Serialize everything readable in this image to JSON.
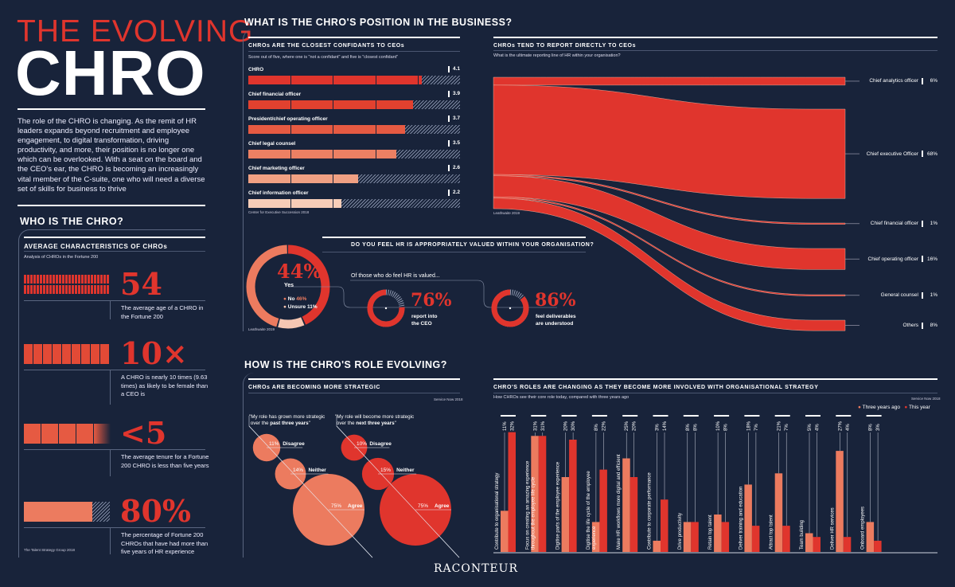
{
  "header": {
    "kicker": "THE EVOLVING",
    "title": "CHRO",
    "intro": "The role of the CHRO is changing. As the remit of HR leaders expands beyond recruitment and employee engagement, to digital transformation, driving productivity, and more, their position is no longer one which can be overlooked. With a seat on the board and the CEO's ear, the CHRO is becoming an increasingly vital member of the C-suite, one who will need a diverse set of skills for business to thrive"
  },
  "who": {
    "heading": "WHO IS THE CHRO?",
    "panel_title": "AVERAGE CHARACTERISTICS OF CHROs",
    "panel_sub": "Analysis of CHROs in the Fortune 200",
    "source": "The Talent Strategy Group 2018",
    "stats": [
      {
        "value": "54",
        "text": "The average age of a CHRO in the Fortune 200"
      },
      {
        "value": "10×",
        "text": "A CHRO is nearly 10 times (9.63 times) as likely to be female than a CEO is"
      },
      {
        "value": "<5",
        "text": "The average tenure for a Fortune 200 CHRO is less than five years"
      },
      {
        "value": "80%",
        "text": "The percentage of Fortune 200 CHROs that have had more than five years of HR experience",
        "fill": 0.8
      }
    ]
  },
  "position": {
    "heading": "WHAT IS THE CHRO'S POSITION IN THE BUSINESS?"
  },
  "confidants": {
    "title": "CHROs ARE THE CLOSEST CONFIDANTS TO CEOs",
    "sub": "Score out of five, where one is \"not a confidant\" and five is \"closest confidant\"",
    "source": "Center for Executive Succession 2018",
    "chart_data": {
      "type": "bar",
      "max": 5,
      "categories": [
        "CHRO",
        "Chief financial officer",
        "President/chief operating officer",
        "Chief legal counsel",
        "Chief marketing officer",
        "Chief information officer"
      ],
      "values": [
        4.1,
        3.9,
        3.7,
        3.5,
        2.6,
        2.2
      ],
      "labels": [
        "4.1",
        "3.9",
        "3.7",
        "3.5",
        "2.6",
        "2.2"
      ],
      "colors": [
        "#e0352d",
        "#e2412f",
        "#e65a42",
        "#ec8063",
        "#f0a083",
        "#f7cdb8"
      ]
    }
  },
  "reporting": {
    "title": "CHROs TEND TO REPORT DIRECTLY TO CEOs",
    "sub": "What is the ultimate reporting line of HR within your organisation?",
    "source": "Leathwaite 2019",
    "chart_data": {
      "type": "sankey",
      "categories": [
        "Chief analytics officer",
        "Chief executive Officer",
        "Chief financial officer",
        "Chief operating officer",
        "General counsel",
        "Others"
      ],
      "values": [
        6,
        68,
        1,
        16,
        1,
        8
      ],
      "labels": [
        "6%",
        "68%",
        "1%",
        "16%",
        "1%",
        "8%"
      ],
      "color": "#e0352d"
    }
  },
  "valued": {
    "title": "DO YOU FEEL HR IS APPROPRIATELY VALUED WITHIN YOUR ORGANISATION?",
    "source": "Leathwaite 2019",
    "big": "44%",
    "yes_label": "Yes",
    "no_label": "No",
    "no_value": "46%",
    "unsure_label": "Unsure",
    "unsure_value": "11%",
    "of_those": "Of those who do feel HR is valued...",
    "chart_data": {
      "type": "pie",
      "categories": [
        "Yes",
        "Unsure",
        "No"
      ],
      "values": [
        44,
        11,
        46
      ],
      "colors": [
        "#e0352d",
        "#f6c7b3",
        "#ec7b5f"
      ]
    },
    "sub_stats": [
      {
        "value": "76%",
        "fraction": 0.76,
        "text1": "report into",
        "text2": "the CEO"
      },
      {
        "value": "86%",
        "fraction": 0.86,
        "text1": "feel deliverables",
        "text2": "are understood"
      }
    ]
  },
  "evolving": {
    "heading": "HOW IS THE CHRO'S ROLE EVOLVING?"
  },
  "strategic": {
    "title": "CHROs ARE BECOMING MORE STRATEGIC",
    "source": "Service Now 2018",
    "groups": [
      {
        "quote1": "\"My role has grown more strategic",
        "quote2a": "over the ",
        "quote2b": "past three years",
        "quote2c": "\"",
        "color": "#ec7b5f",
        "items": [
          {
            "pct": 11,
            "label": "11%",
            "name": "Disagree"
          },
          {
            "pct": 14,
            "label": "14%",
            "name": "Neither"
          },
          {
            "pct": 75,
            "label": "75%",
            "name": "Agree"
          }
        ]
      },
      {
        "quote1": "\"My role will become more strategic",
        "quote2a": "over the ",
        "quote2b": "next three years",
        "quote2c": "\"",
        "color": "#e0352d",
        "items": [
          {
            "pct": 10,
            "label": "10%",
            "name": "Disagree"
          },
          {
            "pct": 15,
            "label": "15%",
            "name": "Neither"
          },
          {
            "pct": 75,
            "label": "75%",
            "name": "Agree"
          }
        ]
      }
    ]
  },
  "roles": {
    "title": "CHRO'S ROLES ARE CHANGING AS THEY BECOME MORE INVOLVED WITH ORGANISATIONAL STRATEGY",
    "sub": "How CHROs see their core role today, compared with three years ago",
    "source": "Service Now 2018",
    "chart_data": {
      "type": "bar",
      "categories": [
        "Contribute to organisational strategy",
        "Focus on creating an amazing experience throughout the employee life cycle",
        "Digitise parts of the employee experience",
        "Digitise the life cycle of the employee experience",
        "Make HR workflows more digital and efficient",
        "Contribute to corporate performance",
        "Drive productivity",
        "Retain top talent",
        "Deliver training and education",
        "Attract top talent",
        "Team building",
        "Deliver HR services",
        "Onboard employees"
      ],
      "series": [
        {
          "name": "Three years ago",
          "color": "#ec7b5f",
          "values": [
            11,
            31,
            20,
            8,
            25,
            3,
            8,
            10,
            18,
            21,
            5,
            27,
            8
          ]
        },
        {
          "name": "This year",
          "color": "#e0352d",
          "values": [
            32,
            31,
            30,
            22,
            20,
            14,
            8,
            8,
            7,
            7,
            4,
            4,
            3
          ]
        }
      ],
      "unit": "%",
      "legend": "top-right"
    }
  },
  "footer": {
    "logo": "RACONTEUR"
  }
}
